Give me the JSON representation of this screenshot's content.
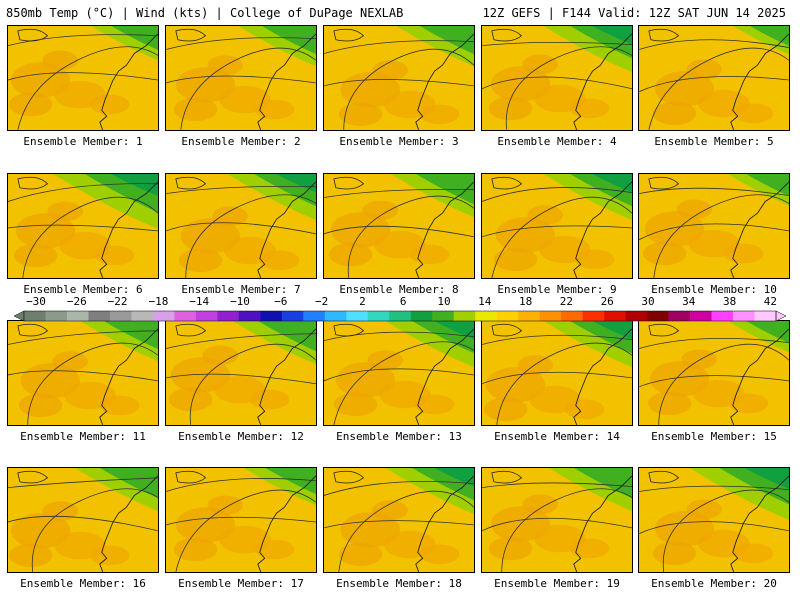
{
  "header": {
    "left": "850mb Temp (°C) | Wind (kts) | College of DuPage NEXLAB",
    "right": "12Z GEFS | F144 Valid: 12Z SAT JUN 14 2025"
  },
  "colorbar": {
    "labels": [
      "−30",
      "−26",
      "−22",
      "−18",
      "−14",
      "−10",
      "−6",
      "−2",
      "2",
      "6",
      "10",
      "14",
      "18",
      "22",
      "26",
      "30",
      "34",
      "38",
      "42"
    ],
    "colors": [
      "#6f7f6f",
      "#8c9a8c",
      "#a9b6a9",
      "#7f7f7f",
      "#9a9a9a",
      "#b8b8b8",
      "#d8a0e8",
      "#e060e0",
      "#c040e0",
      "#9020d0",
      "#5010c0",
      "#1010b0",
      "#1840e0",
      "#2080ff",
      "#30b8ff",
      "#50e0ff",
      "#30d8c0",
      "#20c080",
      "#10a040",
      "#40b020",
      "#a0d000",
      "#e8e800",
      "#ffd000",
      "#ffb000",
      "#ff9000",
      "#ff6a00",
      "#ff3000",
      "#e01000",
      "#b00000",
      "#800000",
      "#a00060",
      "#d000a0",
      "#ff40ff",
      "#ff90ff",
      "#ffc8ff"
    ]
  },
  "panels": [
    {
      "caption": "Ensemble Member: 1",
      "green": 0.25
    },
    {
      "caption": "Ensemble Member: 2",
      "green": 0.35
    },
    {
      "caption": "Ensemble Member: 3",
      "green": 0.35
    },
    {
      "caption": "Ensemble Member: 4",
      "green": 0.45
    },
    {
      "caption": "Ensemble Member: 5",
      "green": 0.15
    },
    {
      "caption": "Ensemble Member: 6",
      "green": 0.6
    },
    {
      "caption": "Ensemble Member: 7",
      "green": 0.45
    },
    {
      "caption": "Ensemble Member: 8",
      "green": 0.4
    },
    {
      "caption": "Ensemble Member: 9",
      "green": 0.45
    },
    {
      "caption": "Ensemble Member: 10",
      "green": 0.2
    },
    {
      "caption": "Ensemble Member: 11",
      "green": 0.35
    },
    {
      "caption": "Ensemble Member: 12",
      "green": 0.4
    },
    {
      "caption": "Ensemble Member: 13",
      "green": 0.45
    },
    {
      "caption": "Ensemble Member: 14",
      "green": 0.45
    },
    {
      "caption": "Ensemble Member: 15",
      "green": 0.2
    },
    {
      "caption": "Ensemble Member: 16",
      "green": 0.4
    },
    {
      "caption": "Ensemble Member: 17",
      "green": 0.3
    },
    {
      "caption": "Ensemble Member: 18",
      "green": 0.45
    },
    {
      "caption": "Ensemble Member: 19",
      "green": 0.4
    },
    {
      "caption": "Ensemble Member: 20",
      "green": 0.55
    }
  ]
}
